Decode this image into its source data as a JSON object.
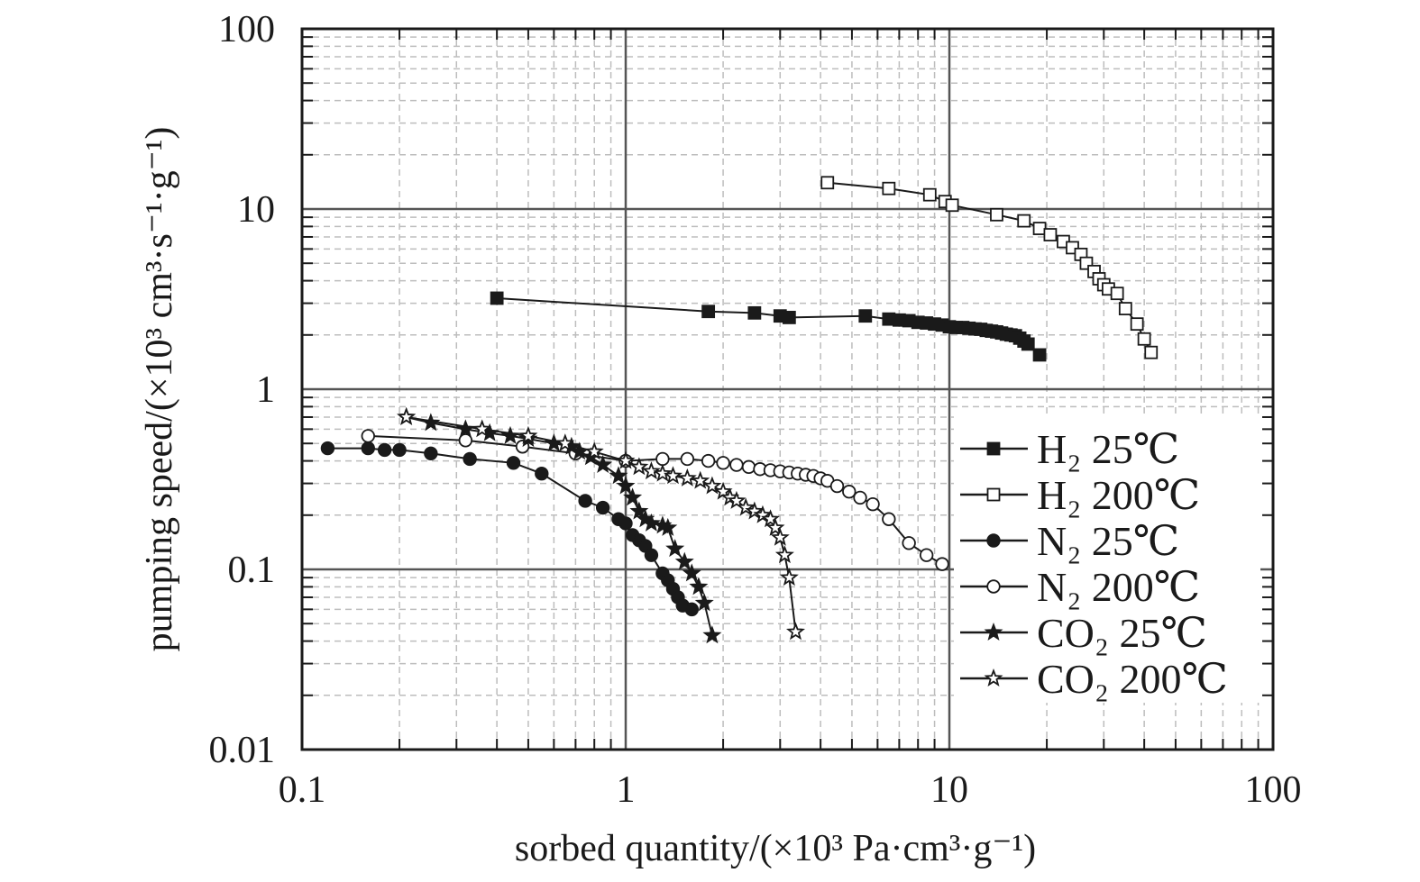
{
  "chart_data": {
    "type": "scatter",
    "x_scale": "log",
    "y_scale": "log",
    "xlim": [
      0.1,
      100
    ],
    "ylim": [
      0.01,
      100
    ],
    "xlabel": "sorbed quantity/(×10³ Pa·cm³·g⁻¹)",
    "ylabel": "pumping speed/(×10³ cm³·s⁻¹·g⁻¹)",
    "x_ticks": [
      "0.1",
      "1",
      "10",
      "100"
    ],
    "y_ticks": [
      "0.01",
      "0.1",
      "1",
      "10",
      "100"
    ],
    "grid": true,
    "legend_position": "right",
    "series": [
      {
        "name": "H₂ 25℃",
        "marker": "square-filled",
        "points": [
          [
            0.4,
            3.2
          ],
          [
            1.8,
            2.7
          ],
          [
            2.5,
            2.65
          ],
          [
            3.0,
            2.55
          ],
          [
            3.2,
            2.5
          ],
          [
            5.5,
            2.55
          ],
          [
            6.5,
            2.45
          ],
          [
            7.0,
            2.42
          ],
          [
            7.5,
            2.4
          ],
          [
            8.0,
            2.35
          ],
          [
            8.5,
            2.33
          ],
          [
            9.0,
            2.3
          ],
          [
            9.5,
            2.27
          ],
          [
            10.0,
            2.22
          ],
          [
            10.5,
            2.2
          ],
          [
            11.0,
            2.2
          ],
          [
            11.5,
            2.18
          ],
          [
            12.0,
            2.16
          ],
          [
            12.5,
            2.15
          ],
          [
            13.0,
            2.12
          ],
          [
            13.5,
            2.1
          ],
          [
            14.0,
            2.08
          ],
          [
            14.5,
            2.05
          ],
          [
            15.0,
            2.02
          ],
          [
            15.5,
            2.0
          ],
          [
            16.0,
            1.98
          ],
          [
            16.5,
            1.92
          ],
          [
            17.0,
            1.85
          ],
          [
            17.5,
            1.78
          ],
          [
            19.0,
            1.55
          ]
        ]
      },
      {
        "name": "H₂ 200℃",
        "marker": "square-open",
        "points": [
          [
            4.2,
            14
          ],
          [
            6.5,
            13
          ],
          [
            8.7,
            12
          ],
          [
            9.7,
            11
          ],
          [
            10.2,
            10.5
          ],
          [
            14,
            9.3
          ],
          [
            17,
            8.6
          ],
          [
            19,
            7.8
          ],
          [
            20.5,
            7.2
          ],
          [
            22.5,
            6.6
          ],
          [
            24,
            6.1
          ],
          [
            25.5,
            5.6
          ],
          [
            26.5,
            5.0
          ],
          [
            28,
            4.5
          ],
          [
            29,
            4.1
          ],
          [
            30,
            3.8
          ],
          [
            31,
            3.6
          ],
          [
            33,
            3.4
          ],
          [
            35,
            2.8
          ],
          [
            38,
            2.3
          ],
          [
            40,
            1.9
          ],
          [
            42,
            1.6
          ]
        ]
      },
      {
        "name": "N₂ 25℃",
        "marker": "circle-filled",
        "points": [
          [
            0.12,
            0.47
          ],
          [
            0.16,
            0.47
          ],
          [
            0.18,
            0.46
          ],
          [
            0.2,
            0.46
          ],
          [
            0.25,
            0.44
          ],
          [
            0.33,
            0.41
          ],
          [
            0.45,
            0.39
          ],
          [
            0.55,
            0.34
          ],
          [
            0.75,
            0.24
          ],
          [
            0.85,
            0.22
          ],
          [
            0.95,
            0.19
          ],
          [
            1.0,
            0.18
          ],
          [
            1.05,
            0.155
          ],
          [
            1.1,
            0.145
          ],
          [
            1.15,
            0.135
          ],
          [
            1.2,
            0.12
          ],
          [
            1.3,
            0.095
          ],
          [
            1.35,
            0.087
          ],
          [
            1.4,
            0.078
          ],
          [
            1.45,
            0.07
          ],
          [
            1.5,
            0.063
          ],
          [
            1.6,
            0.06
          ]
        ]
      },
      {
        "name": "N₂ 200℃",
        "marker": "circle-open",
        "points": [
          [
            0.16,
            0.55
          ],
          [
            0.32,
            0.52
          ],
          [
            0.48,
            0.48
          ],
          [
            0.7,
            0.44
          ],
          [
            1.0,
            0.4
          ],
          [
            1.3,
            0.41
          ],
          [
            1.55,
            0.41
          ],
          [
            1.8,
            0.4
          ],
          [
            2.0,
            0.39
          ],
          [
            2.2,
            0.38
          ],
          [
            2.4,
            0.37
          ],
          [
            2.6,
            0.36
          ],
          [
            2.8,
            0.355
          ],
          [
            3.0,
            0.35
          ],
          [
            3.2,
            0.345
          ],
          [
            3.4,
            0.34
          ],
          [
            3.6,
            0.335
          ],
          [
            3.8,
            0.33
          ],
          [
            4.0,
            0.32
          ],
          [
            4.2,
            0.31
          ],
          [
            4.5,
            0.29
          ],
          [
            4.9,
            0.27
          ],
          [
            5.3,
            0.25
          ],
          [
            5.8,
            0.23
          ],
          [
            6.5,
            0.19
          ],
          [
            7.5,
            0.14
          ],
          [
            8.5,
            0.12
          ],
          [
            9.5,
            0.107
          ]
        ]
      },
      {
        "name": "CO₂ 25℃",
        "marker": "star-filled",
        "points": [
          [
            0.21,
            0.7
          ],
          [
            0.25,
            0.65
          ],
          [
            0.32,
            0.6
          ],
          [
            0.38,
            0.57
          ],
          [
            0.44,
            0.55
          ],
          [
            0.5,
            0.53
          ],
          [
            0.6,
            0.5
          ],
          [
            0.68,
            0.48
          ],
          [
            0.72,
            0.45
          ],
          [
            0.78,
            0.42
          ],
          [
            0.85,
            0.38
          ],
          [
            0.95,
            0.33
          ],
          [
            1.0,
            0.29
          ],
          [
            1.05,
            0.25
          ],
          [
            1.1,
            0.21
          ],
          [
            1.15,
            0.19
          ],
          [
            1.2,
            0.18
          ],
          [
            1.3,
            0.175
          ],
          [
            1.35,
            0.17
          ],
          [
            1.42,
            0.13
          ],
          [
            1.52,
            0.11
          ],
          [
            1.6,
            0.095
          ],
          [
            1.68,
            0.08
          ],
          [
            1.75,
            0.065
          ],
          [
            1.85,
            0.043
          ]
        ]
      },
      {
        "name": "CO₂ 200℃",
        "marker": "star-open",
        "points": [
          [
            0.21,
            0.7
          ],
          [
            0.36,
            0.6
          ],
          [
            0.5,
            0.55
          ],
          [
            0.65,
            0.5
          ],
          [
            0.8,
            0.45
          ],
          [
            1.0,
            0.4
          ],
          [
            1.1,
            0.37
          ],
          [
            1.2,
            0.35
          ],
          [
            1.3,
            0.34
          ],
          [
            1.4,
            0.33
          ],
          [
            1.55,
            0.32
          ],
          [
            1.7,
            0.31
          ],
          [
            1.85,
            0.29
          ],
          [
            2.0,
            0.27
          ],
          [
            2.1,
            0.25
          ],
          [
            2.2,
            0.24
          ],
          [
            2.35,
            0.22
          ],
          [
            2.5,
            0.21
          ],
          [
            2.65,
            0.2
          ],
          [
            2.8,
            0.19
          ],
          [
            2.9,
            0.17
          ],
          [
            3.0,
            0.15
          ],
          [
            3.1,
            0.12
          ],
          [
            3.2,
            0.09
          ],
          [
            3.35,
            0.045
          ]
        ]
      }
    ]
  }
}
